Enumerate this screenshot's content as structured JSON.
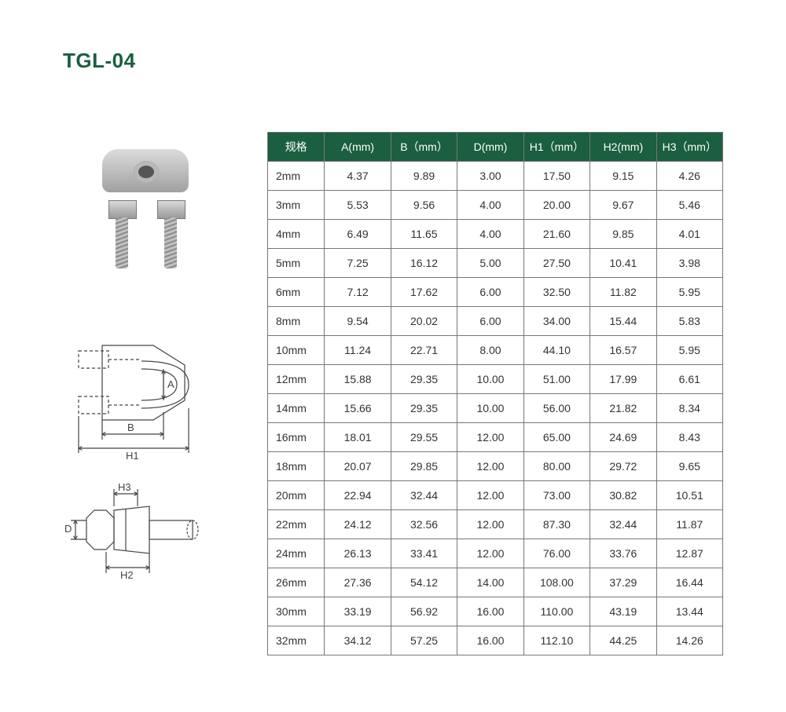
{
  "title": "TGL-04",
  "title_color": "#1a5f3f",
  "table": {
    "header_bg": "#1a5f3f",
    "header_color": "#ffffff",
    "border_color": "#777777",
    "cell_color": "#333333",
    "columns": [
      "规格",
      "A(mm)",
      "B（mm）",
      "D(mm)",
      "H1（mm）",
      "H2(mm)",
      "H3（mm）"
    ],
    "rows": [
      [
        "2mm",
        "4.37",
        "9.89",
        "3.00",
        "17.50",
        "9.15",
        "4.26"
      ],
      [
        "3mm",
        "5.53",
        "9.56",
        "4.00",
        "20.00",
        "9.67",
        "5.46"
      ],
      [
        "4mm",
        "6.49",
        "11.65",
        "4.00",
        "21.60",
        "9.85",
        "4.01"
      ],
      [
        "5mm",
        "7.25",
        "16.12",
        "5.00",
        "27.50",
        "10.41",
        "3.98"
      ],
      [
        "6mm",
        "7.12",
        "17.62",
        "6.00",
        "32.50",
        "11.82",
        "5.95"
      ],
      [
        "8mm",
        "9.54",
        "20.02",
        "6.00",
        "34.00",
        "15.44",
        "5.83"
      ],
      [
        "10mm",
        "11.24",
        "22.71",
        "8.00",
        "44.10",
        "16.57",
        "5.95"
      ],
      [
        "12mm",
        "15.88",
        "29.35",
        "10.00",
        "51.00",
        "17.99",
        "6.61"
      ],
      [
        "14mm",
        "15.66",
        "29.35",
        "10.00",
        "56.00",
        "21.82",
        "8.34"
      ],
      [
        "16mm",
        "18.01",
        "29.55",
        "12.00",
        "65.00",
        "24.69",
        "8.43"
      ],
      [
        "18mm",
        "20.07",
        "29.85",
        "12.00",
        "80.00",
        "29.72",
        "9.65"
      ],
      [
        "20mm",
        "22.94",
        "32.44",
        "12.00",
        "73.00",
        "30.82",
        "10.51"
      ],
      [
        "22mm",
        "24.12",
        "32.56",
        "12.00",
        "87.30",
        "32.44",
        "11.87"
      ],
      [
        "24mm",
        "26.13",
        "33.41",
        "12.00",
        "76.00",
        "33.76",
        "12.87"
      ],
      [
        "26mm",
        "27.36",
        "54.12",
        "14.00",
        "108.00",
        "37.29",
        "16.44"
      ],
      [
        "30mm",
        "33.19",
        "56.92",
        "16.00",
        "110.00",
        "43.19",
        "13.44"
      ],
      [
        "32mm",
        "34.12",
        "57.25",
        "16.00",
        "112.10",
        "44.25",
        "14.26"
      ]
    ]
  },
  "diagrams": {
    "stroke": "#444444",
    "stroke_width": 1.2,
    "font_size": 13,
    "labels_top": {
      "A": "A",
      "B": "B",
      "H1": "H1"
    },
    "labels_bottom": {
      "H3": "H3",
      "D": "D",
      "H2": "H2"
    }
  },
  "photo": {
    "icon_name": "wire-rope-clip-icon"
  }
}
